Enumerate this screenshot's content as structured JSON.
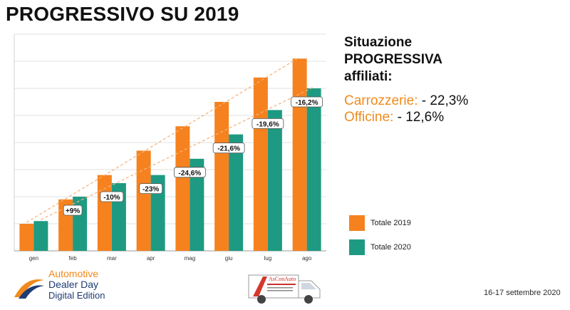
{
  "title": "PROGRESSIVO SU 2019",
  "side": {
    "heading_lines": [
      "Situazione",
      "PROGRESSIVA",
      "affiliati:"
    ],
    "stats": [
      {
        "label": "Carrozzerie:",
        "value": " - 22,3%"
      },
      {
        "label": "Officine:",
        "value": " - 12,6%"
      }
    ]
  },
  "legend": [
    {
      "label": "Totale 2019",
      "color": "#f5821f"
    },
    {
      "label": "Totale 2020",
      "color": "#1f9a82"
    }
  ],
  "chart_data": {
    "type": "bar",
    "categories": [
      "gen",
      "feb",
      "mar",
      "apr",
      "mag",
      "giu",
      "lug",
      "ago"
    ],
    "series": [
      {
        "name": "Totale 2019",
        "color": "#f5821f",
        "values": [
          10,
          19,
          28,
          37,
          46,
          55,
          64,
          71
        ]
      },
      {
        "name": "Totale 2020",
        "color": "#1f9a82",
        "values": [
          11,
          20,
          25,
          28,
          34,
          43,
          52,
          60
        ]
      }
    ],
    "annotations": [
      "",
      "+9%",
      "-10%",
      "-23%",
      "-24,6%",
      "-21,6%",
      "-19,6%",
      "-16,2%"
    ],
    "trend_lines": true,
    "ylim": [
      0,
      80
    ],
    "grid": true
  },
  "logos": {
    "left": {
      "line1": "Automotive",
      "line2": "Dealer Day",
      "line3": "Digital Edition"
    },
    "center": {
      "text": "AsConAuto"
    }
  },
  "footer": {
    "date": "16-17 settembre 2020"
  }
}
